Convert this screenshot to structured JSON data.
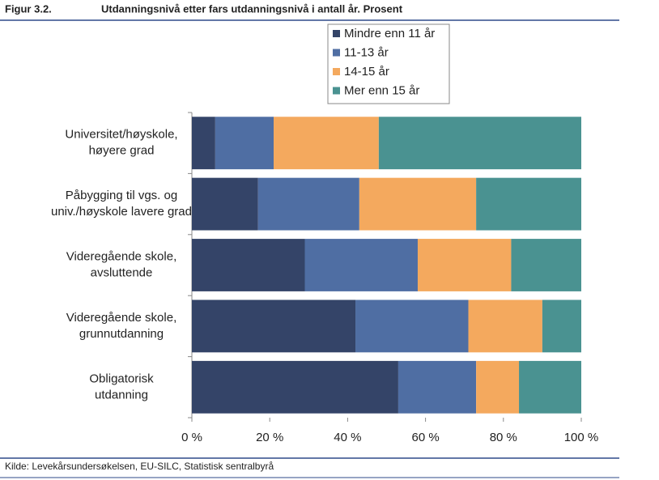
{
  "chart_data": {
    "type": "stacked-barh",
    "figure_label": "Figur 3.2.",
    "title": "Utdanningsnivå etter fars utdanningsnivå i antall år. Prosent",
    "source": "Kilde: Levekårsundersøkelsen, EU-SILC, Statistisk sentralbyrå",
    "categories": [
      "Universitet/høyskole,\nhøyere grad",
      "Påbygging til vgs. og\nuniv./høyskole lavere grad",
      "Videregående skole,\navsluttende",
      "Videregående skole,\ngrunnutdanning",
      "Obligatorisk\nutdanning"
    ],
    "series": [
      {
        "name": "Mindre enn 11 år",
        "color": "#344468",
        "values": [
          6,
          17,
          29,
          42,
          53
        ]
      },
      {
        "name": "11-13 år",
        "color": "#4f6ea3",
        "values": [
          15,
          26,
          29,
          29,
          20
        ]
      },
      {
        "name": "14-15 år",
        "color": "#f4a95e",
        "values": [
          27,
          30,
          24,
          19,
          11
        ]
      },
      {
        "name": "Mer enn 15 år",
        "color": "#4a9291",
        "values": [
          52,
          27,
          18,
          10,
          16
        ]
      }
    ],
    "xlim": [
      0,
      100
    ],
    "xticks": [
      {
        "value": 0,
        "label": "0 %"
      },
      {
        "value": 20,
        "label": "20 %"
      },
      {
        "value": 40,
        "label": "40 %"
      },
      {
        "value": 60,
        "label": "60 %"
      },
      {
        "value": 80,
        "label": "80 %"
      },
      {
        "value": 100,
        "label": "100 %"
      }
    ],
    "legend": "top"
  }
}
